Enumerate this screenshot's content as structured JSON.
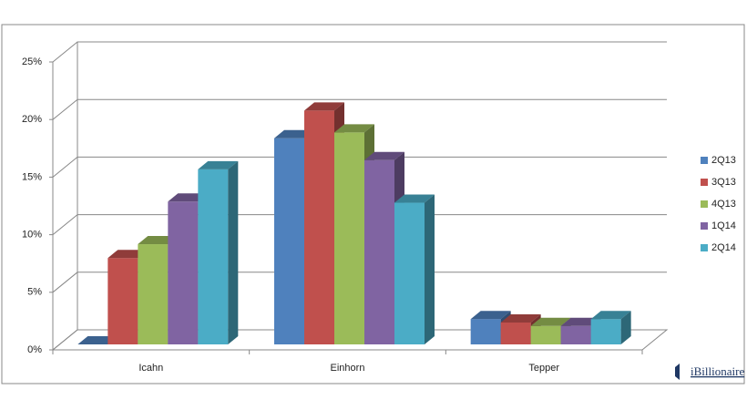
{
  "chart_data": {
    "type": "bar3d",
    "categories": [
      "Icahn",
      "Einhorn",
      "Tepper"
    ],
    "series": [
      {
        "name": "2Q13",
        "color": "#4f81bd",
        "values": [
          0,
          17.9,
          2.2
        ]
      },
      {
        "name": "3Q13",
        "color": "#c0504d",
        "values": [
          7.5,
          20.3,
          1.9
        ]
      },
      {
        "name": "4Q13",
        "color": "#9bbb59",
        "values": [
          8.7,
          18.4,
          1.6
        ]
      },
      {
        "name": "1Q14",
        "color": "#8064a2",
        "values": [
          12.4,
          16.0,
          1.6
        ]
      },
      {
        "name": "2Q14",
        "color": "#4bacc6",
        "values": [
          15.2,
          12.3,
          2.2
        ]
      }
    ],
    "ylim": [
      0,
      25
    ],
    "yticks": [
      {
        "value": 0,
        "label": "0%"
      },
      {
        "value": 5,
        "label": "5%"
      },
      {
        "value": 10,
        "label": "10%"
      },
      {
        "value": 15,
        "label": "15%"
      },
      {
        "value": 20,
        "label": "20%"
      },
      {
        "value": 25,
        "label": "25%"
      }
    ],
    "grid": true,
    "legend": "right"
  },
  "brand": "iBillionaire"
}
